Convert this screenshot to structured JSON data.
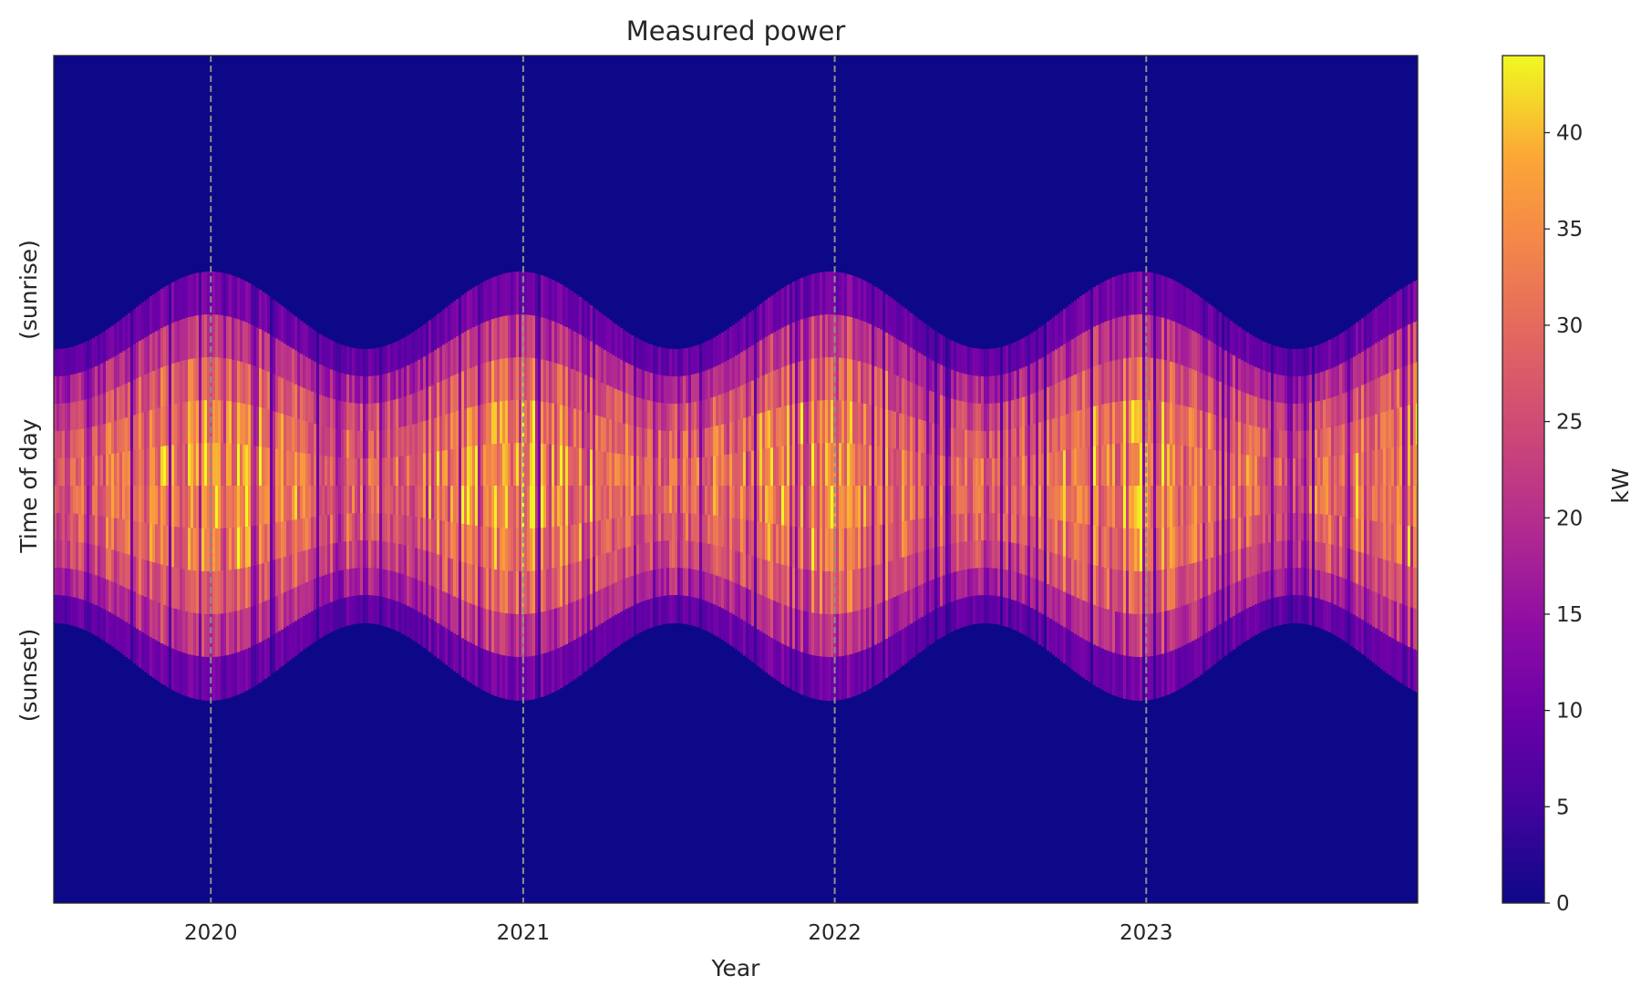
{
  "chart_data": {
    "type": "heatmap",
    "title": "Measured power",
    "xlabel": "Year",
    "ylabel": "Time of day",
    "y_annotations": {
      "upper": "(sunrise)",
      "lower": "(sunset)"
    },
    "x_range": [
      "2019-07-01",
      "2023-11-15"
    ],
    "x_ticks": [
      "2020",
      "2021",
      "2022",
      "2023"
    ],
    "x_tick_dates": [
      "2020-01-01",
      "2021-01-01",
      "2022-01-01",
      "2023-01-01"
    ],
    "vertical_dashed_lines": [
      "2020-01-01",
      "2021-01-01",
      "2022-01-01",
      "2023-01-01"
    ],
    "colormap": "plasma",
    "colorbar": {
      "label": "kW",
      "range": [
        0,
        44
      ],
      "ticks": [
        0,
        5,
        10,
        15,
        20,
        25,
        30,
        35,
        40
      ]
    },
    "approx_peak_kw": 44,
    "grid": false
  }
}
